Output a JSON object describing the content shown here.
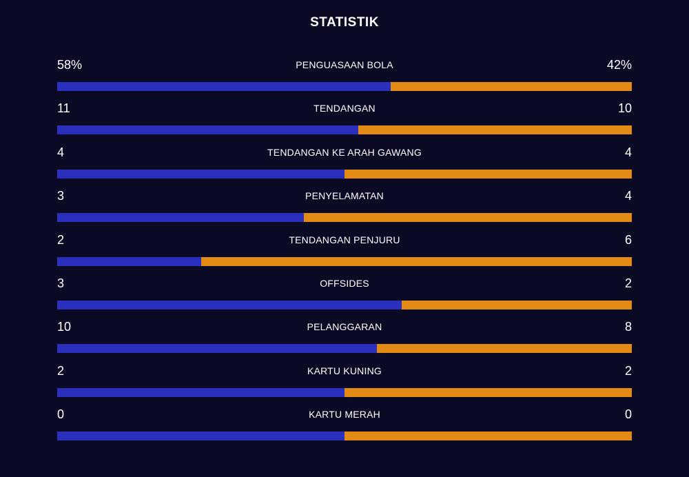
{
  "title": "STATISTIK",
  "colors": {
    "home": "#2b2fbd",
    "away": "#e28a14",
    "background": "#0a0a24"
  },
  "stats": [
    {
      "label": "PENGUASAAN BOLA",
      "left": "58%",
      "right": "42%",
      "home_share": 0.58
    },
    {
      "label": "TENDANGAN",
      "left": "11",
      "right": "10",
      "home_share": 0.524
    },
    {
      "label": "TENDANGAN KE ARAH GAWANG",
      "left": "4",
      "right": "4",
      "home_share": 0.5
    },
    {
      "label": "PENYELAMATAN",
      "left": "3",
      "right": "4",
      "home_share": 0.429
    },
    {
      "label": "TENDANGAN PENJURU",
      "left": "2",
      "right": "6",
      "home_share": 0.25
    },
    {
      "label": "OFFSIDES",
      "left": "3",
      "right": "2",
      "home_share": 0.6
    },
    {
      "label": "PELANGGARAN",
      "left": "10",
      "right": "8",
      "home_share": 0.556
    },
    {
      "label": "KARTU KUNING",
      "left": "2",
      "right": "2",
      "home_share": 0.5
    },
    {
      "label": "KARTU MERAH",
      "left": "0",
      "right": "0",
      "home_share": 0.5
    }
  ]
}
